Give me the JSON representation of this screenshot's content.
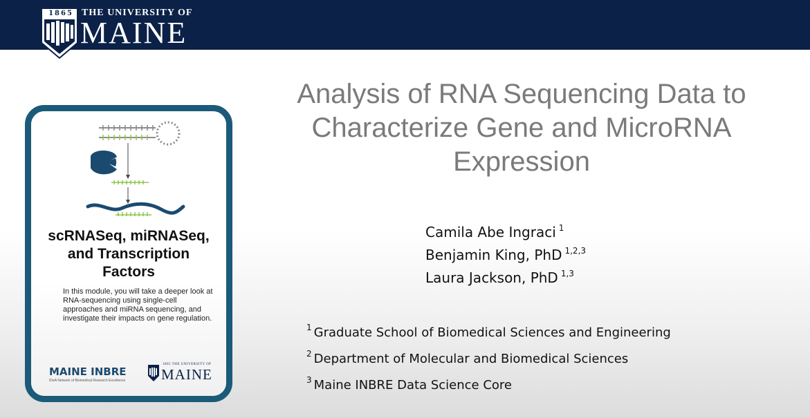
{
  "header": {
    "logo_year": "1865",
    "logo_university": "THE UNIVERSITY OF",
    "logo_name": "MAINE",
    "background": "#0b2147"
  },
  "module_card": {
    "title_lines": [
      "scRNASeq, miRNASeq,",
      "and Transcription",
      "Factors"
    ],
    "description_lines": [
      "In this module, you will take a deeper look at",
      "RNA-sequencing using single-cell",
      "approaches and miRNA sequencing, and",
      "investigate their impacts on gene regulation."
    ],
    "inbre_logo": "MAINE INBRE",
    "inbre_tagline": "IDeA Network of Biomedical Research Excellence",
    "mini_logo_university": "1865 THE UNIVERSITY OF",
    "mini_logo_name": "MAINE",
    "border_color": "#1b5a78"
  },
  "presentation": {
    "title_lines": [
      "Analysis of RNA Sequencing Data to",
      "Characterize Gene and MicroRNA",
      "Expression"
    ],
    "authors": [
      {
        "name": "Camila Abe Ingraci",
        "affil": "1"
      },
      {
        "name": "Benjamin King, PhD",
        "affil": "1,2,3"
      },
      {
        "name": "Laura Jackson, PhD",
        "affil": "1,3"
      }
    ],
    "affiliations": [
      {
        "num": "1",
        "text": "Graduate School of Biomedical Sciences and Engineering"
      },
      {
        "num": "2",
        "text": "Department of Molecular and Biomedical Sciences"
      },
      {
        "num": "3",
        "text": "Maine INBRE Data Science Core"
      }
    ]
  }
}
